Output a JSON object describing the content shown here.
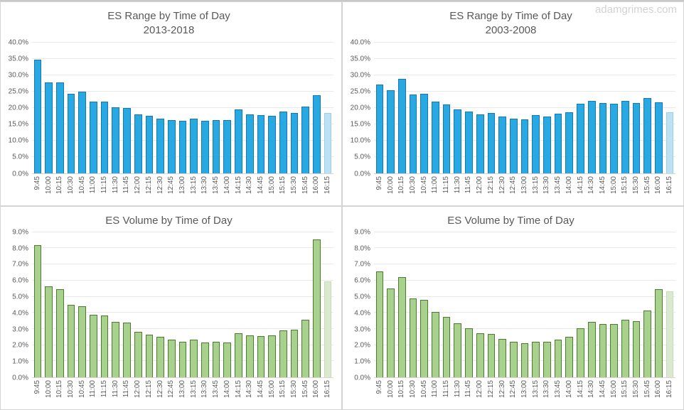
{
  "page": {
    "watermark": "adamgrimes.com"
  },
  "colors": {
    "range_bar_fill": "#29a9e1",
    "range_bar_border": "#1577b5",
    "range_last_bar_fill": "#bce0f4",
    "range_last_bar_border": "#9ccfec",
    "volume_bar_fill": "#a9d18e",
    "volume_bar_border": "#4e7a2f",
    "volume_last_bar_fill": "#dbe9d1",
    "volume_last_bar_border": "#c5ddb6",
    "axis_text": "#595959",
    "title_text": "#595959",
    "gridline": "#e9e9e9"
  },
  "chart_data": [
    {
      "type": "bar",
      "title": "ES Range by Time of Day",
      "subtitle": "2013-2018",
      "xlabel": "",
      "ylabel": "",
      "ylim": [
        0,
        40
      ],
      "ytick_step": 5,
      "y_tick_labels": [
        "40.0%",
        "35.0%",
        "30.0%",
        "25.0%",
        "20.0%",
        "15.0%",
        "10.0%",
        "5.0%",
        "0.0%"
      ],
      "grid": true,
      "legend": null,
      "categories": [
        "9:45",
        "10:00",
        "10:15",
        "10:30",
        "10:45",
        "11:00",
        "11:15",
        "11:30",
        "11:45",
        "12:00",
        "12:15",
        "12:30",
        "12:45",
        "13:00",
        "13:15",
        "13:30",
        "13:45",
        "14:00",
        "14:15",
        "14:30",
        "14:45",
        "15:00",
        "15:15",
        "15:30",
        "15:45",
        "16:00",
        "16:15"
      ],
      "values": [
        34.6,
        27.8,
        27.8,
        24.2,
        24.8,
        21.9,
        21.8,
        20.2,
        20.0,
        18.0,
        17.5,
        16.6,
        16.3,
        16.0,
        16.6,
        15.9,
        16.3,
        16.1,
        19.4,
        18.0,
        17.7,
        17.4,
        18.8,
        18.4,
        20.3,
        23.7,
        18.4
      ],
      "bar_fill": "#29a9e1",
      "bar_border": "#1577b5",
      "last_bar_fill": "#bce0f4",
      "last_bar_border": "#9ccfec",
      "note": "last bar (16:15) drawn in lighter shade"
    },
    {
      "type": "bar",
      "title": "ES Range by Time of Day",
      "subtitle": "2003-2008",
      "xlabel": "",
      "ylabel": "",
      "ylim": [
        0,
        40
      ],
      "ytick_step": 5,
      "y_tick_labels": [
        "40.0%",
        "35.0%",
        "30.0%",
        "25.0%",
        "20.0%",
        "15.0%",
        "10.0%",
        "5.0%",
        "0.0%"
      ],
      "grid": true,
      "legend": null,
      "categories": [
        "9:45",
        "10:00",
        "10:15",
        "10:30",
        "10:45",
        "11:00",
        "11:15",
        "11:30",
        "11:45",
        "12:00",
        "12:15",
        "12:30",
        "12:45",
        "13:00",
        "13:15",
        "13:30",
        "13:45",
        "14:00",
        "14:15",
        "14:30",
        "14:45",
        "15:00",
        "15:15",
        "15:30",
        "15:45",
        "16:00",
        "16:15"
      ],
      "values": [
        27.0,
        25.3,
        28.9,
        24.1,
        24.3,
        21.9,
        21.0,
        19.5,
        18.8,
        18.0,
        18.4,
        17.2,
        16.6,
        16.4,
        17.7,
        17.2,
        18.1,
        18.6,
        21.3,
        22.0,
        21.4,
        21.1,
        22.1,
        21.4,
        23.0,
        21.7,
        18.6
      ],
      "bar_fill": "#29a9e1",
      "bar_border": "#1577b5",
      "last_bar_fill": "#bce0f4",
      "last_bar_border": "#9ccfec",
      "note": "last bar (16:15) drawn in lighter shade"
    },
    {
      "type": "bar",
      "title": "ES Volume by Time of Day",
      "subtitle": "",
      "xlabel": "",
      "ylabel": "",
      "ylim": [
        0,
        9
      ],
      "ytick_step": 1,
      "y_tick_labels": [
        "9.0%",
        "8.0%",
        "7.0%",
        "6.0%",
        "5.0%",
        "4.0%",
        "3.0%",
        "2.0%",
        "1.0%",
        "0.0%"
      ],
      "grid": true,
      "legend": null,
      "categories": [
        "9:45",
        "10:00",
        "10:15",
        "10:30",
        "10:45",
        "11:00",
        "11:15",
        "11:30",
        "11:45",
        "12:00",
        "12:15",
        "12:30",
        "12:45",
        "13:00",
        "13:15",
        "13:30",
        "13:45",
        "14:00",
        "14:15",
        "14:30",
        "14:45",
        "15:00",
        "15:15",
        "15:30",
        "15:45",
        "16:00",
        "16:15"
      ],
      "values": [
        8.2,
        5.65,
        5.45,
        4.5,
        4.4,
        3.9,
        3.85,
        3.45,
        3.4,
        2.8,
        2.65,
        2.5,
        2.35,
        2.2,
        2.35,
        2.15,
        2.2,
        2.15,
        2.75,
        2.6,
        2.55,
        2.6,
        2.9,
        2.95,
        3.55,
        8.55,
        5.95
      ],
      "bar_fill": "#a9d18e",
      "bar_border": "#4e7a2f",
      "last_bar_fill": "#dbe9d1",
      "last_bar_border": "#c5ddb6",
      "note": "last bar (16:15) drawn in lighter shade"
    },
    {
      "type": "bar",
      "title": "ES Volume by Time of Day",
      "subtitle": "",
      "xlabel": "",
      "ylabel": "",
      "ylim": [
        0,
        9
      ],
      "ytick_step": 1,
      "y_tick_labels": [
        "9.0%",
        "8.0%",
        "7.0%",
        "6.0%",
        "5.0%",
        "4.0%",
        "3.0%",
        "2.0%",
        "1.0%",
        "0.0%"
      ],
      "grid": true,
      "legend": null,
      "categories": [
        "9:45",
        "10:00",
        "10:15",
        "10:30",
        "10:45",
        "11:00",
        "11:15",
        "11:30",
        "11:45",
        "12:00",
        "12:15",
        "12:30",
        "12:45",
        "13:00",
        "13:15",
        "13:30",
        "13:45",
        "14:00",
        "14:15",
        "14:30",
        "14:45",
        "15:00",
        "15:15",
        "15:30",
        "15:45",
        "16:00",
        "16:15"
      ],
      "values": [
        6.55,
        5.5,
        6.2,
        4.9,
        4.8,
        4.05,
        3.75,
        3.35,
        3.05,
        2.75,
        2.7,
        2.4,
        2.2,
        2.1,
        2.2,
        2.2,
        2.35,
        2.5,
        3.05,
        3.45,
        3.3,
        3.3,
        3.55,
        3.5,
        4.15,
        5.45,
        5.35
      ],
      "bar_fill": "#a9d18e",
      "bar_border": "#4e7a2f",
      "last_bar_fill": "#dbe9d1",
      "last_bar_border": "#c5ddb6",
      "note": "last bar (16:15) drawn in lighter shade"
    }
  ]
}
